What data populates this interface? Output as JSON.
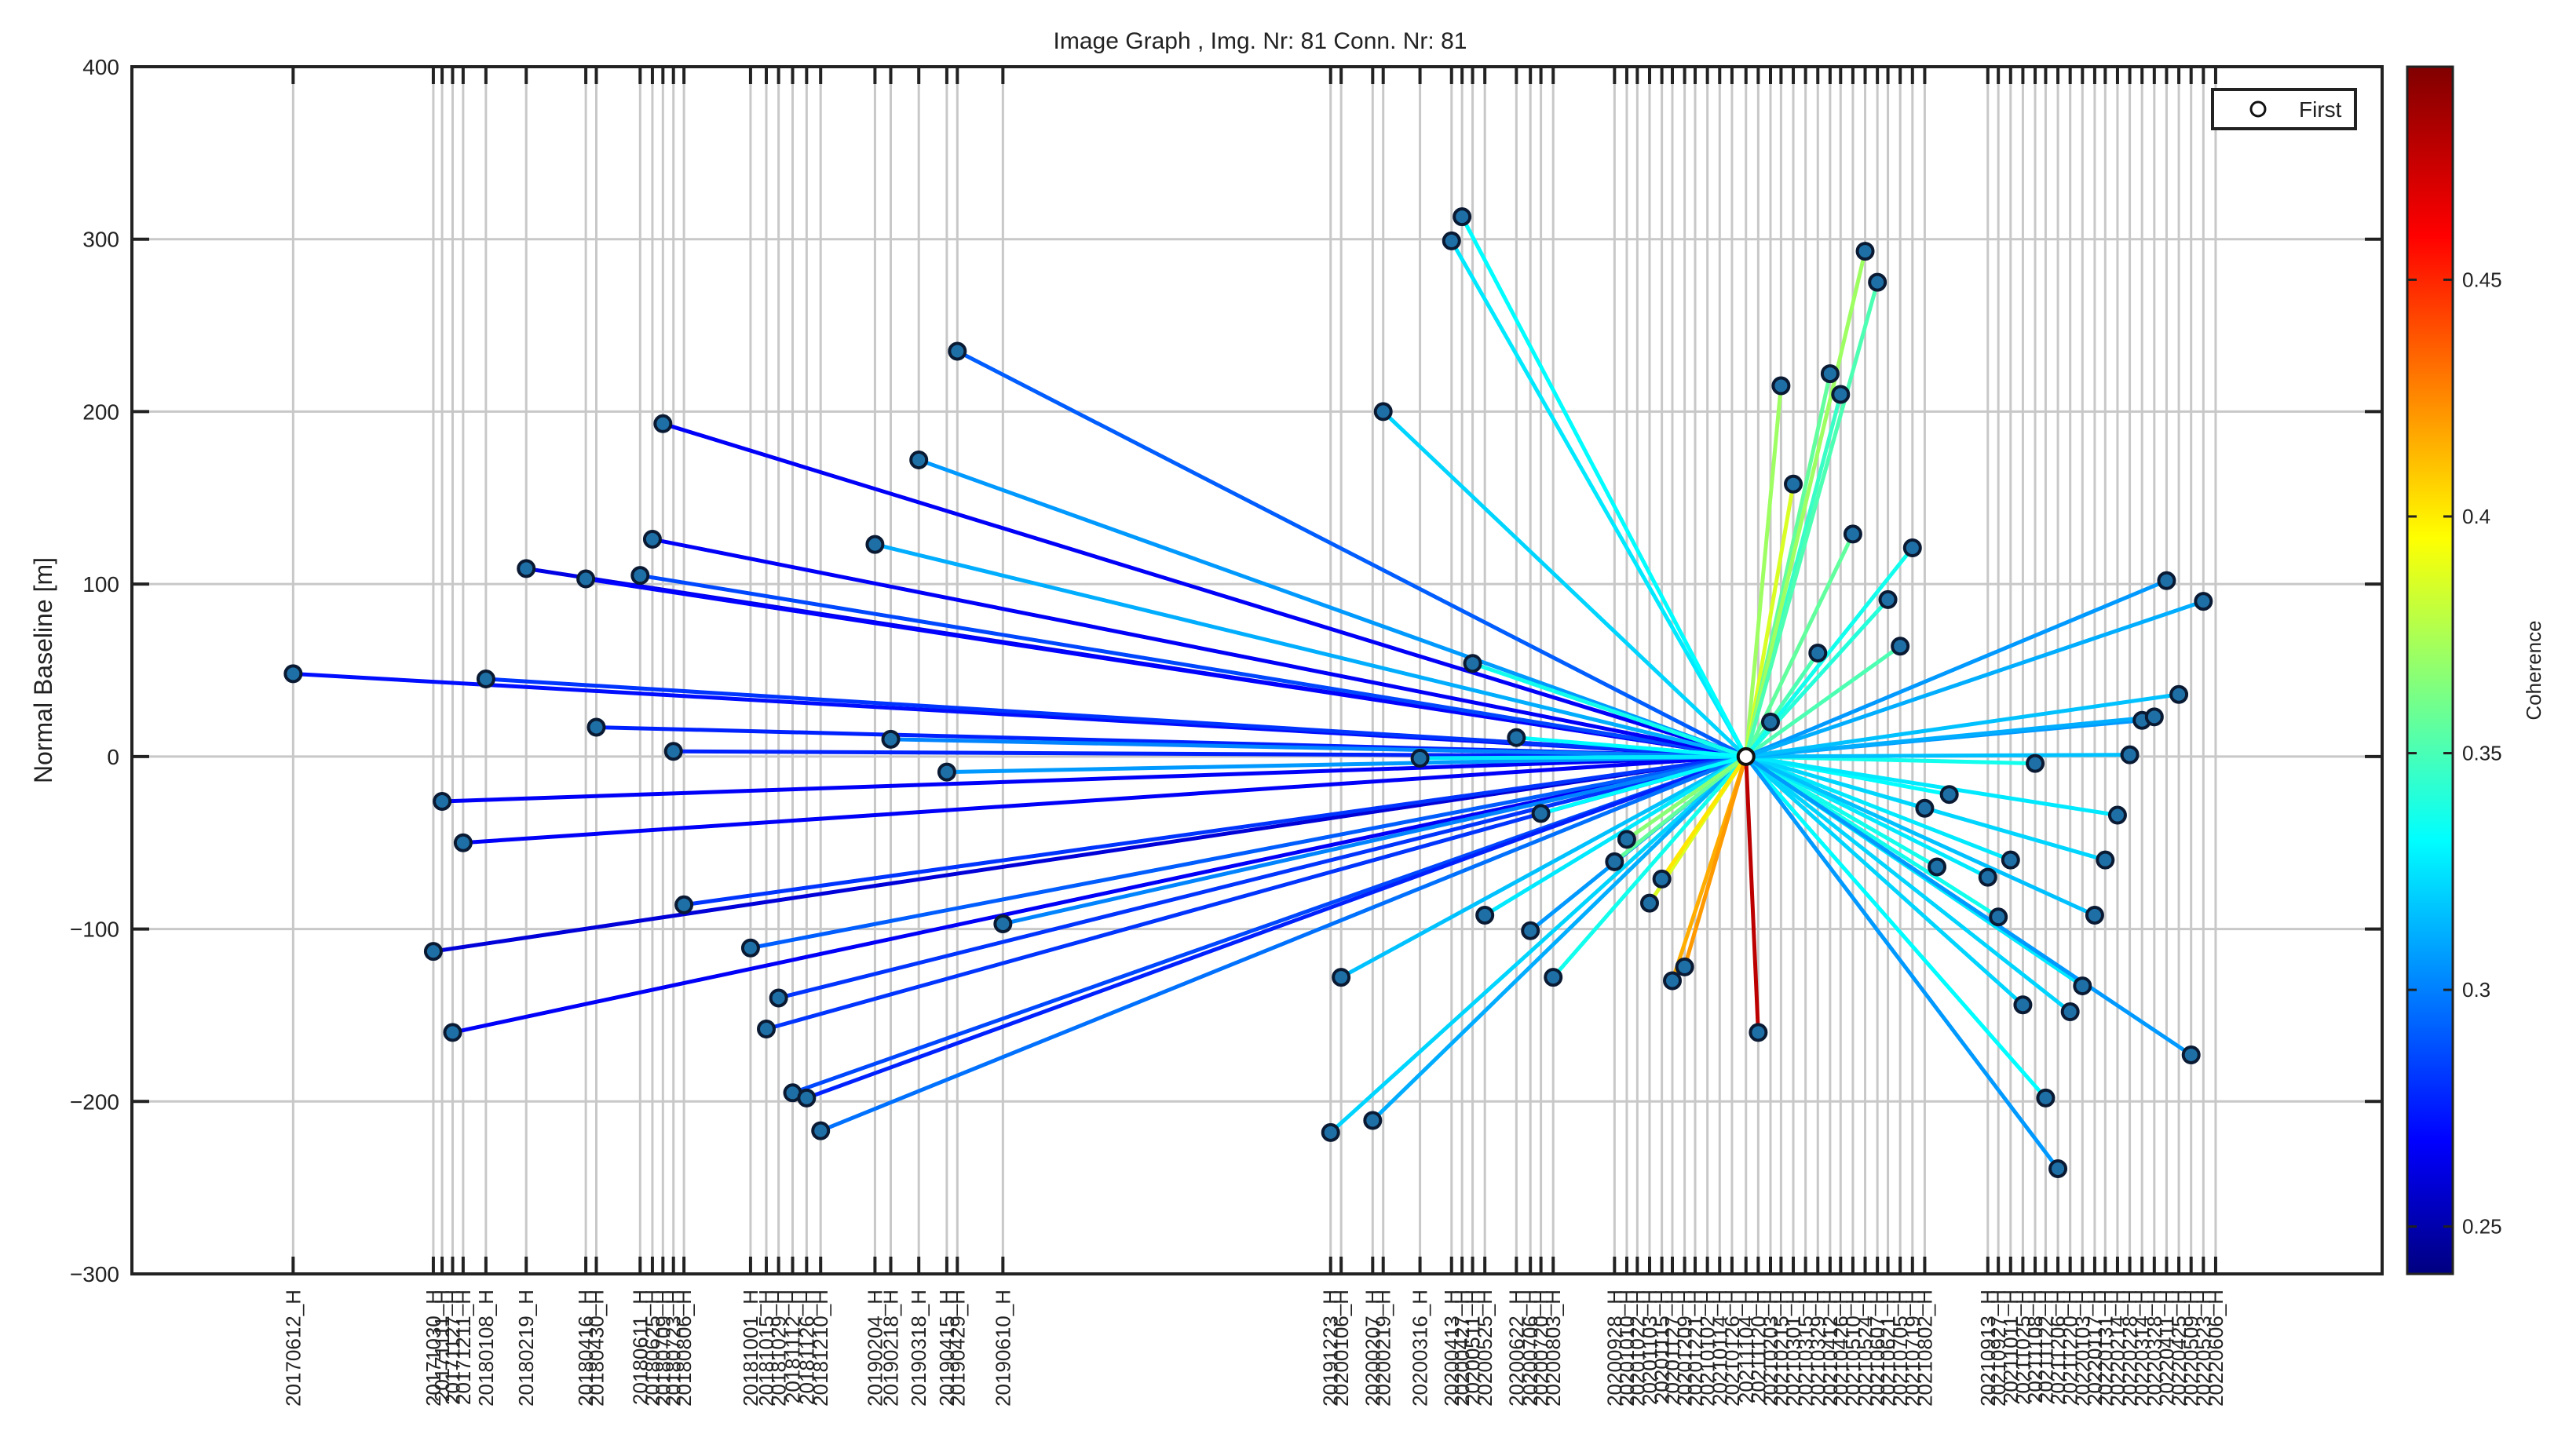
{
  "chart_data": {
    "type": "scatter",
    "title": "Image Graph , Img. Nr: 81 Conn. Nr: 81",
    "xlabel": "",
    "ylabel": "Normal Baseline [m]",
    "ylim": [
      -300,
      400
    ],
    "yticks": [
      400,
      300,
      200,
      100,
      0,
      -100,
      -200,
      -300
    ],
    "ytick_labels": [
      "400",
      "300",
      "200",
      "100",
      "0",
      "−100",
      "−200",
      "−300"
    ],
    "xlim": [
      -72,
      1212
    ],
    "legend": {
      "label": "First",
      "location": "top-right"
    },
    "master": {
      "date": "20211104",
      "x": 849,
      "baseline": 0
    },
    "colorbar": {
      "label": "Coherence",
      "range": [
        0.24,
        0.495
      ],
      "ticks": [
        0.25,
        0.3,
        0.35,
        0.4,
        0.45
      ],
      "tick_labels": [
        "0.25",
        "0.3",
        "0.35",
        "0.4",
        "0.45"
      ]
    },
    "x_tick_labels": [
      {
        "x": 20,
        "label": "20170612_H"
      },
      {
        "x": 100,
        "label": "20171030_H"
      },
      {
        "x": 105,
        "label": "20171111_H"
      },
      {
        "x": 111,
        "label": "20171127_H"
      },
      {
        "x": 117,
        "label": "20171211_H"
      },
      {
        "x": 130,
        "label": "20180108_H"
      },
      {
        "x": 153,
        "label": "20180219_H"
      },
      {
        "x": 187,
        "label": "20180416_H"
      },
      {
        "x": 193,
        "label": "20180430_H"
      },
      {
        "x": 218,
        "label": "20180611_H"
      },
      {
        "x": 225,
        "label": "20180625_H"
      },
      {
        "x": 231,
        "label": "20180709_H"
      },
      {
        "x": 237,
        "label": "20180723_H"
      },
      {
        "x": 243,
        "label": "20180806_H"
      },
      {
        "x": 281,
        "label": "20181001_H"
      },
      {
        "x": 290,
        "label": "20181015_H"
      },
      {
        "x": 297,
        "label": "20181029_H"
      },
      {
        "x": 305,
        "label": "20181112_H"
      },
      {
        "x": 313,
        "label": "20181126_H"
      },
      {
        "x": 321,
        "label": "20181210_H"
      },
      {
        "x": 352,
        "label": "20190204_H"
      },
      {
        "x": 361,
        "label": "20190218_H"
      },
      {
        "x": 377,
        "label": "20190318_H"
      },
      {
        "x": 393,
        "label": "20190415_H"
      },
      {
        "x": 399,
        "label": "20190429_H"
      },
      {
        "x": 425,
        "label": "20190610_H"
      },
      {
        "x": 612,
        "label": "20191223_H"
      },
      {
        "x": 618,
        "label": "20200106_H"
      },
      {
        "x": 636,
        "label": "20200207_H"
      },
      {
        "x": 642,
        "label": "20200219_H"
      },
      {
        "x": 663,
        "label": "20200316_H"
      },
      {
        "x": 681,
        "label": "20200413_H"
      },
      {
        "x": 687,
        "label": "20200427_H"
      },
      {
        "x": 693,
        "label": "20200511_H"
      },
      {
        "x": 700,
        "label": "20200525_H"
      },
      {
        "x": 718,
        "label": "20200622_H"
      },
      {
        "x": 726,
        "label": "20200706_H"
      },
      {
        "x": 732,
        "label": "20200720_H"
      },
      {
        "x": 739,
        "label": "20200803_H"
      },
      {
        "x": 774,
        "label": "20200928_H"
      },
      {
        "x": 781,
        "label": "20201010_H"
      },
      {
        "x": 787,
        "label": "20201022_H"
      },
      {
        "x": 794,
        "label": "20201103_H"
      },
      {
        "x": 801,
        "label": "20201115_H"
      },
      {
        "x": 807,
        "label": "20201127_H"
      },
      {
        "x": 814,
        "label": "20201209_H"
      },
      {
        "x": 820,
        "label": "20201221_H"
      },
      {
        "x": 827,
        "label": "20210102_H"
      },
      {
        "x": 834,
        "label": "20210114_H"
      },
      {
        "x": 841,
        "label": "20210126_H"
      },
      {
        "x": 849,
        "label": "20211104_H"
      },
      {
        "x": 856,
        "label": "20211120_H"
      },
      {
        "x": 863,
        "label": "20210203_H"
      },
      {
        "x": 869,
        "label": "20210215_H"
      },
      {
        "x": 876,
        "label": "20210301_H"
      },
      {
        "x": 883,
        "label": "20210315_H"
      },
      {
        "x": 890,
        "label": "20210329_H"
      },
      {
        "x": 897,
        "label": "20210412_H"
      },
      {
        "x": 903,
        "label": "20210426_H"
      },
      {
        "x": 910,
        "label": "20210510_H"
      },
      {
        "x": 917,
        "label": "20210524_H"
      },
      {
        "x": 924,
        "label": "20210607_H"
      },
      {
        "x": 930,
        "label": "20210621_H"
      },
      {
        "x": 937,
        "label": "20210705_H"
      },
      {
        "x": 944,
        "label": "20210719_H"
      },
      {
        "x": 951,
        "label": "20210802_H"
      },
      {
        "x": 987,
        "label": "20210913_H"
      },
      {
        "x": 993,
        "label": "20210927_H"
      },
      {
        "x": 1000,
        "label": "20211011_H"
      },
      {
        "x": 1007,
        "label": "20211025_H"
      },
      {
        "x": 1014,
        "label": "20211108_H"
      },
      {
        "x": 1020,
        "label": "20211122_H"
      },
      {
        "x": 1027,
        "label": "20211206_H"
      },
      {
        "x": 1034,
        "label": "20211220_H"
      },
      {
        "x": 1041,
        "label": "20220103_H"
      },
      {
        "x": 1048,
        "label": "20220117_H"
      },
      {
        "x": 1054,
        "label": "20220131_H"
      },
      {
        "x": 1061,
        "label": "20220214_H"
      },
      {
        "x": 1068,
        "label": "20220228_H"
      },
      {
        "x": 1075,
        "label": "20220314_H"
      },
      {
        "x": 1082,
        "label": "20220328_H"
      },
      {
        "x": 1089,
        "label": "20220411_H"
      },
      {
        "x": 1096,
        "label": "20220425_H"
      },
      {
        "x": 1103,
        "label": "20220509_H"
      },
      {
        "x": 1110,
        "label": "20220523_H"
      },
      {
        "x": 1117,
        "label": "20220606_H"
      }
    ],
    "points": [
      {
        "x": 20,
        "y": 48,
        "coherence": 0.275
      },
      {
        "x": 100,
        "y": -113,
        "coherence": 0.262
      },
      {
        "x": 105,
        "y": -26,
        "coherence": 0.27
      },
      {
        "x": 111,
        "y": -160,
        "coherence": 0.27
      },
      {
        "x": 117,
        "y": -50,
        "coherence": 0.27
      },
      {
        "x": 130,
        "y": 45,
        "coherence": 0.285
      },
      {
        "x": 153,
        "y": 109,
        "coherence": 0.265
      },
      {
        "x": 187,
        "y": 103,
        "coherence": 0.272
      },
      {
        "x": 193,
        "y": 17,
        "coherence": 0.28
      },
      {
        "x": 218,
        "y": 105,
        "coherence": 0.29
      },
      {
        "x": 225,
        "y": 126,
        "coherence": 0.27
      },
      {
        "x": 231,
        "y": 193,
        "coherence": 0.27
      },
      {
        "x": 237,
        "y": 3,
        "coherence": 0.28
      },
      {
        "x": 243,
        "y": -86,
        "coherence": 0.285
      },
      {
        "x": 281,
        "y": -111,
        "coherence": 0.295
      },
      {
        "x": 290,
        "y": -158,
        "coherence": 0.285
      },
      {
        "x": 297,
        "y": -140,
        "coherence": 0.285
      },
      {
        "x": 305,
        "y": -195,
        "coherence": 0.29
      },
      {
        "x": 313,
        "y": -198,
        "coherence": 0.28
      },
      {
        "x": 321,
        "y": -217,
        "coherence": 0.3
      },
      {
        "x": 352,
        "y": 123,
        "coherence": 0.315
      },
      {
        "x": 361,
        "y": 10,
        "coherence": 0.305
      },
      {
        "x": 377,
        "y": 172,
        "coherence": 0.31
      },
      {
        "x": 393,
        "y": -9,
        "coherence": 0.31
      },
      {
        "x": 399,
        "y": 235,
        "coherence": 0.295
      },
      {
        "x": 425,
        "y": -97,
        "coherence": 0.305
      },
      {
        "x": 612,
        "y": -218,
        "coherence": 0.325
      },
      {
        "x": 618,
        "y": -128,
        "coherence": 0.32
      },
      {
        "x": 636,
        "y": -211,
        "coherence": 0.315
      },
      {
        "x": 642,
        "y": 200,
        "coherence": 0.325
      },
      {
        "x": 663,
        "y": -1,
        "coherence": 0.33
      },
      {
        "x": 681,
        "y": 299,
        "coherence": 0.33
      },
      {
        "x": 687,
        "y": 313,
        "coherence": 0.335
      },
      {
        "x": 693,
        "y": 54,
        "coherence": 0.34
      },
      {
        "x": 700,
        "y": -92,
        "coherence": 0.33
      },
      {
        "x": 718,
        "y": 11,
        "coherence": 0.335
      },
      {
        "x": 726,
        "y": -101,
        "coherence": 0.31
      },
      {
        "x": 732,
        "y": -33,
        "coherence": 0.335
      },
      {
        "x": 739,
        "y": -128,
        "coherence": 0.34
      },
      {
        "x": 774,
        "y": -61,
        "coherence": 0.36
      },
      {
        "x": 781,
        "y": -48,
        "coherence": 0.37
      },
      {
        "x": 794,
        "y": -85,
        "coherence": 0.39
      },
      {
        "x": 801,
        "y": -71,
        "coherence": 0.405
      },
      {
        "x": 807,
        "y": -130,
        "coherence": 0.42
      },
      {
        "x": 814,
        "y": -122,
        "coherence": 0.425
      },
      {
        "x": 856,
        "y": -160,
        "coherence": 0.48
      },
      {
        "x": 863,
        "y": 20,
        "coherence": 0.37
      },
      {
        "x": 869,
        "y": 215,
        "coherence": 0.375
      },
      {
        "x": 876,
        "y": 158,
        "coherence": 0.39
      },
      {
        "x": 890,
        "y": 60,
        "coherence": 0.355
      },
      {
        "x": 897,
        "y": 222,
        "coherence": 0.36
      },
      {
        "x": 903,
        "y": 210,
        "coherence": 0.35
      },
      {
        "x": 910,
        "y": 129,
        "coherence": 0.36
      },
      {
        "x": 917,
        "y": 293,
        "coherence": 0.375
      },
      {
        "x": 924,
        "y": 275,
        "coherence": 0.355
      },
      {
        "x": 930,
        "y": 91,
        "coherence": 0.345
      },
      {
        "x": 937,
        "y": 64,
        "coherence": 0.355
      },
      {
        "x": 944,
        "y": 121,
        "coherence": 0.34
      },
      {
        "x": 951,
        "y": -30,
        "coherence": 0.34
      },
      {
        "x": 958,
        "y": -64,
        "coherence": 0.34
      },
      {
        "x": 965,
        "y": -22,
        "coherence": 0.335
      },
      {
        "x": 987,
        "y": -70,
        "coherence": 0.33
      },
      {
        "x": 993,
        "y": -93,
        "coherence": 0.34
      },
      {
        "x": 1000,
        "y": -60,
        "coherence": 0.33
      },
      {
        "x": 1007,
        "y": -144,
        "coherence": 0.325
      },
      {
        "x": 1014,
        "y": -4,
        "coherence": 0.34
      },
      {
        "x": 1020,
        "y": -198,
        "coherence": 0.335
      },
      {
        "x": 1027,
        "y": -239,
        "coherence": 0.31
      },
      {
        "x": 1034,
        "y": -148,
        "coherence": 0.325
      },
      {
        "x": 1041,
        "y": -133,
        "coherence": 0.33
      },
      {
        "x": 1048,
        "y": -92,
        "coherence": 0.32
      },
      {
        "x": 1054,
        "y": -60,
        "coherence": 0.325
      },
      {
        "x": 1061,
        "y": -34,
        "coherence": 0.33
      },
      {
        "x": 1068,
        "y": 1,
        "coherence": 0.32
      },
      {
        "x": 1075,
        "y": 21,
        "coherence": 0.31
      },
      {
        "x": 1082,
        "y": 23,
        "coherence": 0.315
      },
      {
        "x": 1089,
        "y": 102,
        "coherence": 0.31
      },
      {
        "x": 1096,
        "y": 36,
        "coherence": 0.32
      },
      {
        "x": 1103,
        "y": -173,
        "coherence": 0.31
      },
      {
        "x": 1110,
        "y": 90,
        "coherence": 0.315
      }
    ]
  }
}
